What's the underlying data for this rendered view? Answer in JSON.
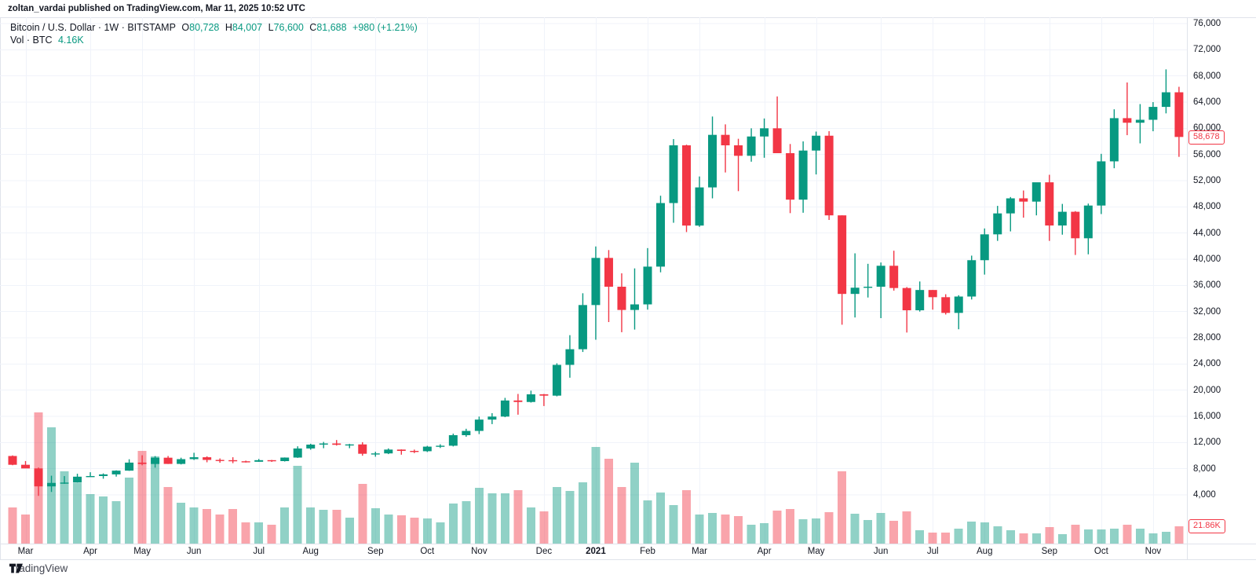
{
  "attribution": "zoltan_vardai published on TradingView.com, Mar 11, 2025 10:52 UTC",
  "legend": {
    "title": "Bitcoin / U.S. Dollar · 1W · BITSTAMP",
    "ohlc": {
      "o": {
        "label": "O",
        "value": "80,728"
      },
      "h": {
        "label": "H",
        "value": "84,007"
      },
      "l": {
        "label": "L",
        "value": "76,600"
      },
      "c": {
        "label": "C",
        "value": "81,688"
      }
    },
    "change": "+980 (+1.21%)",
    "volume_label": "Vol · BTC",
    "volume_value": "4.16K"
  },
  "badges": {
    "last_price": "58,678",
    "last_volume": "21.86K"
  },
  "footer": {
    "brand": "TradingView"
  },
  "colors": {
    "up": "#089981",
    "down": "#F23645",
    "vol_up": "rgba(8,153,129,0.45)",
    "vol_down": "rgba(242,54,69,0.45)",
    "grid": "#f0f3fa",
    "hairline": "#e0e3eb",
    "axis_text": "#131722",
    "badge": "#F23645"
  },
  "chart_data": {
    "type": "candlestick_with_volume",
    "title": "Bitcoin / U.S. Dollar, 1W, BITSTAMP",
    "symbol": "BTCUSD",
    "interval": "1W",
    "exchange": "BITSTAMP",
    "legend_ohlc": {
      "open": 80728,
      "high": 84007,
      "low": 76600,
      "close": 81688,
      "change": 980,
      "change_pct": 1.21,
      "volume_btc_k": 4.16
    },
    "last_price": 58678,
    "last_volume_k": 21.86,
    "price_axis_ticks": [
      4000,
      8000,
      12000,
      16000,
      20000,
      24000,
      28000,
      32000,
      36000,
      40000,
      44000,
      48000,
      52000,
      56000,
      60000,
      64000,
      68000,
      72000,
      76000
    ],
    "price_range_shown": [
      3850,
      76000
    ],
    "grid": true,
    "legend_position": "top-left",
    "x_axis_ticks": [
      {
        "label": "Mar",
        "index": 1
      },
      {
        "label": "Apr",
        "index": 6
      },
      {
        "label": "May",
        "index": 10
      },
      {
        "label": "Jun",
        "index": 14
      },
      {
        "label": "Jul",
        "index": 19
      },
      {
        "label": "Aug",
        "index": 23
      },
      {
        "label": "Sep",
        "index": 28
      },
      {
        "label": "Oct",
        "index": 32
      },
      {
        "label": "Nov",
        "index": 36
      },
      {
        "label": "Dec",
        "index": 41
      },
      {
        "label": "2021",
        "index": 45,
        "year": true
      },
      {
        "label": "Feb",
        "index": 49
      },
      {
        "label": "Mar",
        "index": 53
      },
      {
        "label": "Apr",
        "index": 58
      },
      {
        "label": "May",
        "index": 62
      },
      {
        "label": "Jun",
        "index": 67
      },
      {
        "label": "Jul",
        "index": 71
      },
      {
        "label": "Aug",
        "index": 75
      },
      {
        "label": "Sep",
        "index": 80
      },
      {
        "label": "Oct",
        "index": 84
      },
      {
        "label": "Nov",
        "index": 88
      }
    ],
    "weeks_format": [
      "week_start_date",
      "open",
      "high",
      "low",
      "close",
      "volume_k_btc"
    ],
    "weeks": [
      [
        "2020-02-24",
        9940,
        10030,
        8530,
        8600,
        46
      ],
      [
        "2020-03-02",
        8600,
        9170,
        8410,
        8040,
        37
      ],
      [
        "2020-03-09",
        8040,
        8180,
        3850,
        5300,
        167
      ],
      [
        "2020-03-16",
        5300,
        6930,
        4450,
        5830,
        148
      ],
      [
        "2020-03-23",
        5830,
        6870,
        5680,
        5880,
        92
      ],
      [
        "2020-03-30",
        5880,
        7230,
        5860,
        6780,
        77
      ],
      [
        "2020-04-06",
        6780,
        7460,
        6760,
        6880,
        63
      ],
      [
        "2020-04-13",
        6880,
        7280,
        6470,
        7130,
        60
      ],
      [
        "2020-04-20",
        7130,
        7750,
        6790,
        7700,
        54
      ],
      [
        "2020-04-27",
        7700,
        9440,
        7670,
        8930,
        84
      ],
      [
        "2020-05-04",
        8930,
        10050,
        8520,
        8720,
        118
      ],
      [
        "2020-05-11",
        8720,
        9930,
        8160,
        9680,
        111
      ],
      [
        "2020-05-18",
        9680,
        9940,
        8720,
        8730,
        72
      ],
      [
        "2020-05-25",
        8730,
        9680,
        8650,
        9460,
        52
      ],
      [
        "2020-06-01",
        9460,
        10430,
        9330,
        9750,
        46
      ],
      [
        "2020-06-08",
        9750,
        9890,
        8980,
        9340,
        44
      ],
      [
        "2020-06-15",
        9340,
        9570,
        8910,
        9300,
        37
      ],
      [
        "2020-06-22",
        9300,
        9750,
        8840,
        9135,
        44
      ],
      [
        "2020-06-29",
        9135,
        9230,
        8940,
        9060,
        27
      ],
      [
        "2020-07-06",
        9060,
        9480,
        9050,
        9300,
        27
      ],
      [
        "2020-07-13",
        9300,
        9340,
        9040,
        9160,
        24
      ],
      [
        "2020-07-20",
        9160,
        9720,
        9100,
        9700,
        46
      ],
      [
        "2020-07-27",
        9700,
        11420,
        9650,
        11090,
        99
      ],
      [
        "2020-08-03",
        11090,
        11810,
        10900,
        11680,
        46
      ],
      [
        "2020-08-10",
        11680,
        12090,
        11130,
        11855,
        43
      ],
      [
        "2020-08-17",
        11855,
        12380,
        11530,
        11650,
        43
      ],
      [
        "2020-08-24",
        11650,
        11790,
        11130,
        11710,
        33
      ],
      [
        "2020-08-31",
        11710,
        12050,
        9980,
        10280,
        76
      ],
      [
        "2020-09-07",
        10280,
        10590,
        9830,
        10335,
        45
      ],
      [
        "2020-09-14",
        10335,
        11100,
        10230,
        10920,
        37
      ],
      [
        "2020-09-21",
        10920,
        10950,
        10140,
        10720,
        36
      ],
      [
        "2020-09-28",
        10720,
        10920,
        10380,
        10670,
        33
      ],
      [
        "2020-10-05",
        10670,
        11490,
        10550,
        11370,
        32
      ],
      [
        "2020-10-12",
        11370,
        11730,
        11160,
        11510,
        27
      ],
      [
        "2020-10-19",
        11510,
        13360,
        11400,
        13120,
        51
      ],
      [
        "2020-10-26",
        13120,
        14100,
        12880,
        13770,
        54
      ],
      [
        "2020-11-02",
        13770,
        15960,
        13290,
        15500,
        71
      ],
      [
        "2020-11-09",
        15500,
        16480,
        14810,
        15960,
        64
      ],
      [
        "2020-11-16",
        15960,
        18820,
        15870,
        18420,
        64
      ],
      [
        "2020-11-23",
        18420,
        19420,
        16250,
        18190,
        68
      ],
      [
        "2020-11-30",
        18190,
        19920,
        18100,
        19360,
        46
      ],
      [
        "2020-12-07",
        19360,
        19420,
        17570,
        19160,
        41
      ],
      [
        "2020-12-14",
        19160,
        24100,
        19050,
        23860,
        72
      ],
      [
        "2020-12-21",
        23860,
        28400,
        21900,
        26250,
        67
      ],
      [
        "2020-12-28",
        26250,
        34800,
        25830,
        33000,
        78
      ],
      [
        "2021-01-04",
        33000,
        41950,
        27700,
        40200,
        123
      ],
      [
        "2021-01-11",
        40200,
        41400,
        30400,
        35800,
        108
      ],
      [
        "2021-01-18",
        35800,
        37850,
        28850,
        32250,
        72
      ],
      [
        "2021-01-25",
        32250,
        38600,
        29250,
        33100,
        103
      ],
      [
        "2021-02-01",
        33100,
        41700,
        32300,
        38870,
        55
      ],
      [
        "2021-02-08",
        38870,
        49700,
        38000,
        48580,
        65
      ],
      [
        "2021-02-15",
        48580,
        58350,
        45570,
        57400,
        49
      ],
      [
        "2021-02-22",
        57400,
        57500,
        44150,
        45140,
        68
      ],
      [
        "2021-03-01",
        45140,
        52640,
        44950,
        50970,
        37
      ],
      [
        "2021-03-08",
        50970,
        61800,
        49300,
        59000,
        39
      ],
      [
        "2021-03-15",
        59000,
        60600,
        53250,
        57400,
        37
      ],
      [
        "2021-03-22",
        57400,
        58400,
        50400,
        55800,
        35
      ],
      [
        "2021-03-29",
        55800,
        60000,
        54900,
        58750,
        24
      ],
      [
        "2021-04-05",
        58750,
        61500,
        55500,
        60000,
        26
      ],
      [
        "2021-04-12",
        60000,
        64870,
        59600,
        56200,
        42
      ],
      [
        "2021-04-19",
        56200,
        57600,
        47040,
        49100,
        44
      ],
      [
        "2021-04-26",
        49100,
        58000,
        47100,
        56600,
        31
      ],
      [
        "2021-05-03",
        56600,
        59500,
        52950,
        58870,
        32
      ],
      [
        "2021-05-10",
        58870,
        59560,
        46000,
        46700,
        40
      ],
      [
        "2021-05-17",
        46700,
        46700,
        30000,
        34700,
        92
      ],
      [
        "2021-05-24",
        34700,
        40900,
        31100,
        35650,
        38
      ],
      [
        "2021-05-31",
        35650,
        39300,
        34150,
        35800,
        30
      ],
      [
        "2021-06-07",
        35800,
        39500,
        31000,
        39000,
        39
      ],
      [
        "2021-06-14",
        39000,
        41300,
        35200,
        35600,
        29
      ],
      [
        "2021-06-21",
        35600,
        35750,
        28800,
        32200,
        41
      ],
      [
        "2021-06-28",
        32200,
        36600,
        32000,
        35300,
        17
      ],
      [
        "2021-07-05",
        35300,
        35300,
        32300,
        34200,
        14
      ],
      [
        "2021-07-12",
        34200,
        34650,
        31550,
        31800,
        14
      ],
      [
        "2021-07-19",
        31800,
        34500,
        29300,
        34300,
        19
      ],
      [
        "2021-07-26",
        34300,
        40550,
        33850,
        39850,
        28
      ],
      [
        "2021-08-02",
        39850,
        44700,
        37650,
        43800,
        27
      ],
      [
        "2021-08-09",
        43800,
        48150,
        42800,
        47000,
        22
      ],
      [
        "2021-08-16",
        47000,
        49500,
        44250,
        49300,
        17
      ],
      [
        "2021-08-23",
        49300,
        50500,
        46350,
        48800,
        13
      ],
      [
        "2021-08-30",
        48800,
        51000,
        46700,
        51750,
        13
      ],
      [
        "2021-09-06",
        51750,
        52900,
        42800,
        45150,
        21
      ],
      [
        "2021-09-13",
        45150,
        48450,
        43750,
        47250,
        12
      ],
      [
        "2021-09-20",
        47250,
        47350,
        40650,
        43200,
        24
      ],
      [
        "2021-09-27",
        43200,
        48500,
        40750,
        48200,
        18
      ],
      [
        "2021-10-04",
        48200,
        56100,
        46900,
        54950,
        18
      ],
      [
        "2021-10-11",
        54950,
        62900,
        53900,
        61550,
        19
      ],
      [
        "2021-10-18",
        61550,
        67000,
        58950,
        60850,
        24
      ],
      [
        "2021-10-25",
        60850,
        63700,
        57700,
        61300,
        19
      ],
      [
        "2021-11-01",
        61300,
        64000,
        59550,
        63270,
        13
      ],
      [
        "2021-11-08",
        63270,
        69000,
        62280,
        65500,
        15
      ],
      [
        "2021-11-15",
        65500,
        66340,
        55640,
        58678,
        21.86
      ]
    ]
  }
}
